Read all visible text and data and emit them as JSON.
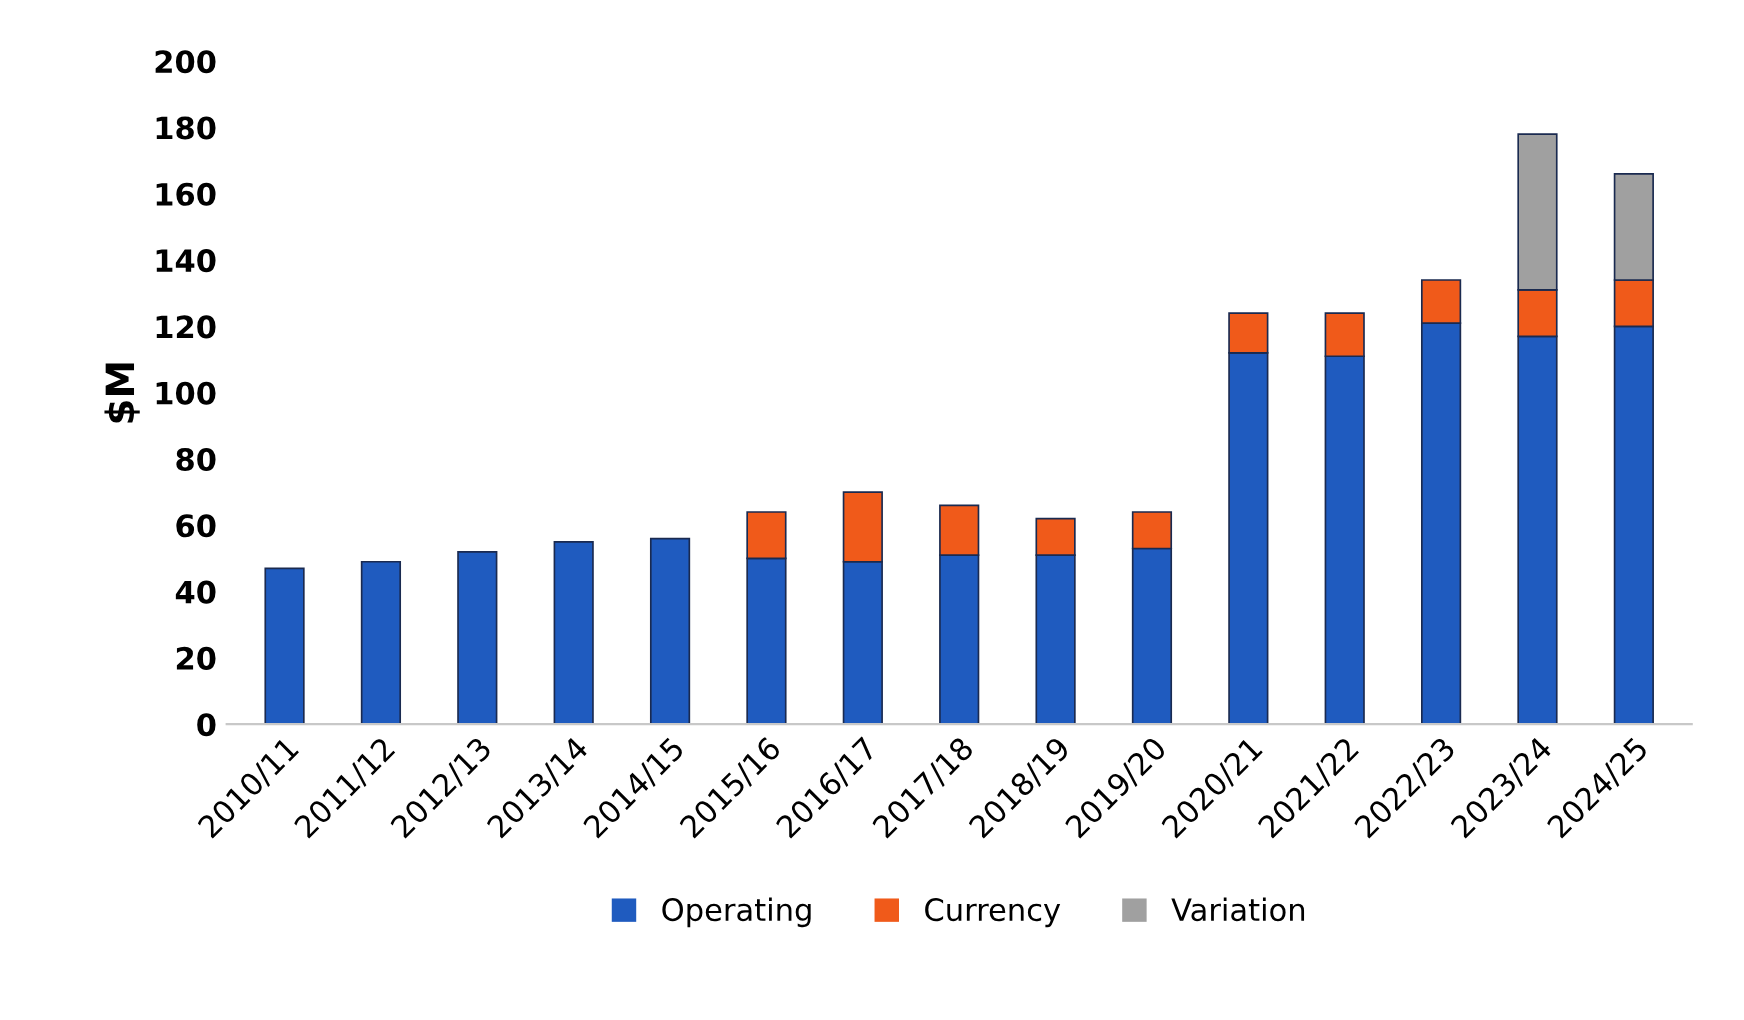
{
  "chart_data": {
    "type": "bar",
    "stacked": true,
    "ylabel": "$M",
    "categories": [
      "2010/11",
      "2011/12",
      "2012/13",
      "2013/14",
      "2014/15",
      "2015/16",
      "2016/17",
      "2017/18",
      "2018/19",
      "2019/20",
      "2020/21",
      "2021/22",
      "2022/23",
      "2023/24",
      "2024/25"
    ],
    "series": [
      {
        "name": "Operating",
        "color": "#1f5bbf",
        "values": [
          47,
          49,
          52,
          55,
          56,
          50,
          49,
          51,
          51,
          53,
          112,
          111,
          121,
          117,
          120
        ]
      },
      {
        "name": "Currency",
        "color": "#f05a1a",
        "values": [
          null,
          null,
          null,
          null,
          null,
          14,
          21,
          15,
          11,
          11,
          12,
          13,
          13,
          14,
          14
        ]
      },
      {
        "name": "Variation",
        "color": "#a0a0a0",
        "values": [
          null,
          null,
          null,
          null,
          null,
          null,
          null,
          null,
          null,
          null,
          null,
          null,
          null,
          47,
          32
        ]
      }
    ],
    "ylim": [
      0,
      200
    ],
    "yticks": [
      0,
      20,
      40,
      60,
      80,
      100,
      120,
      140,
      160,
      180,
      200
    ],
    "grid": false,
    "legend": "bottom"
  }
}
